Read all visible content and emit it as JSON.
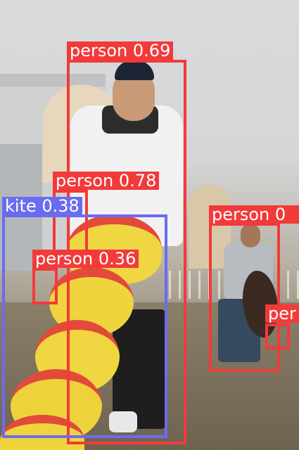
{
  "image": {
    "description_tag": "kite-festival-detections"
  },
  "detections": [
    {
      "label": "person",
      "score": "0.69",
      "text": "person 0.69",
      "color": "#f23a3a"
    },
    {
      "label": "person",
      "score": "0.78",
      "text": "person 0.78",
      "color": "#f23a3a"
    },
    {
      "label": "kite",
      "score": "0.38",
      "text": "kite 0.38",
      "color": "#6a6cf0"
    },
    {
      "label": "person",
      "score": "0.36",
      "text": "person 0.36",
      "color": "#f23a3a"
    },
    {
      "label": "person",
      "score": "0",
      "text": "person 0",
      "color": "#f23a3a"
    },
    {
      "label": "person",
      "score": "",
      "text": "per",
      "color": "#f23a3a"
    }
  ]
}
